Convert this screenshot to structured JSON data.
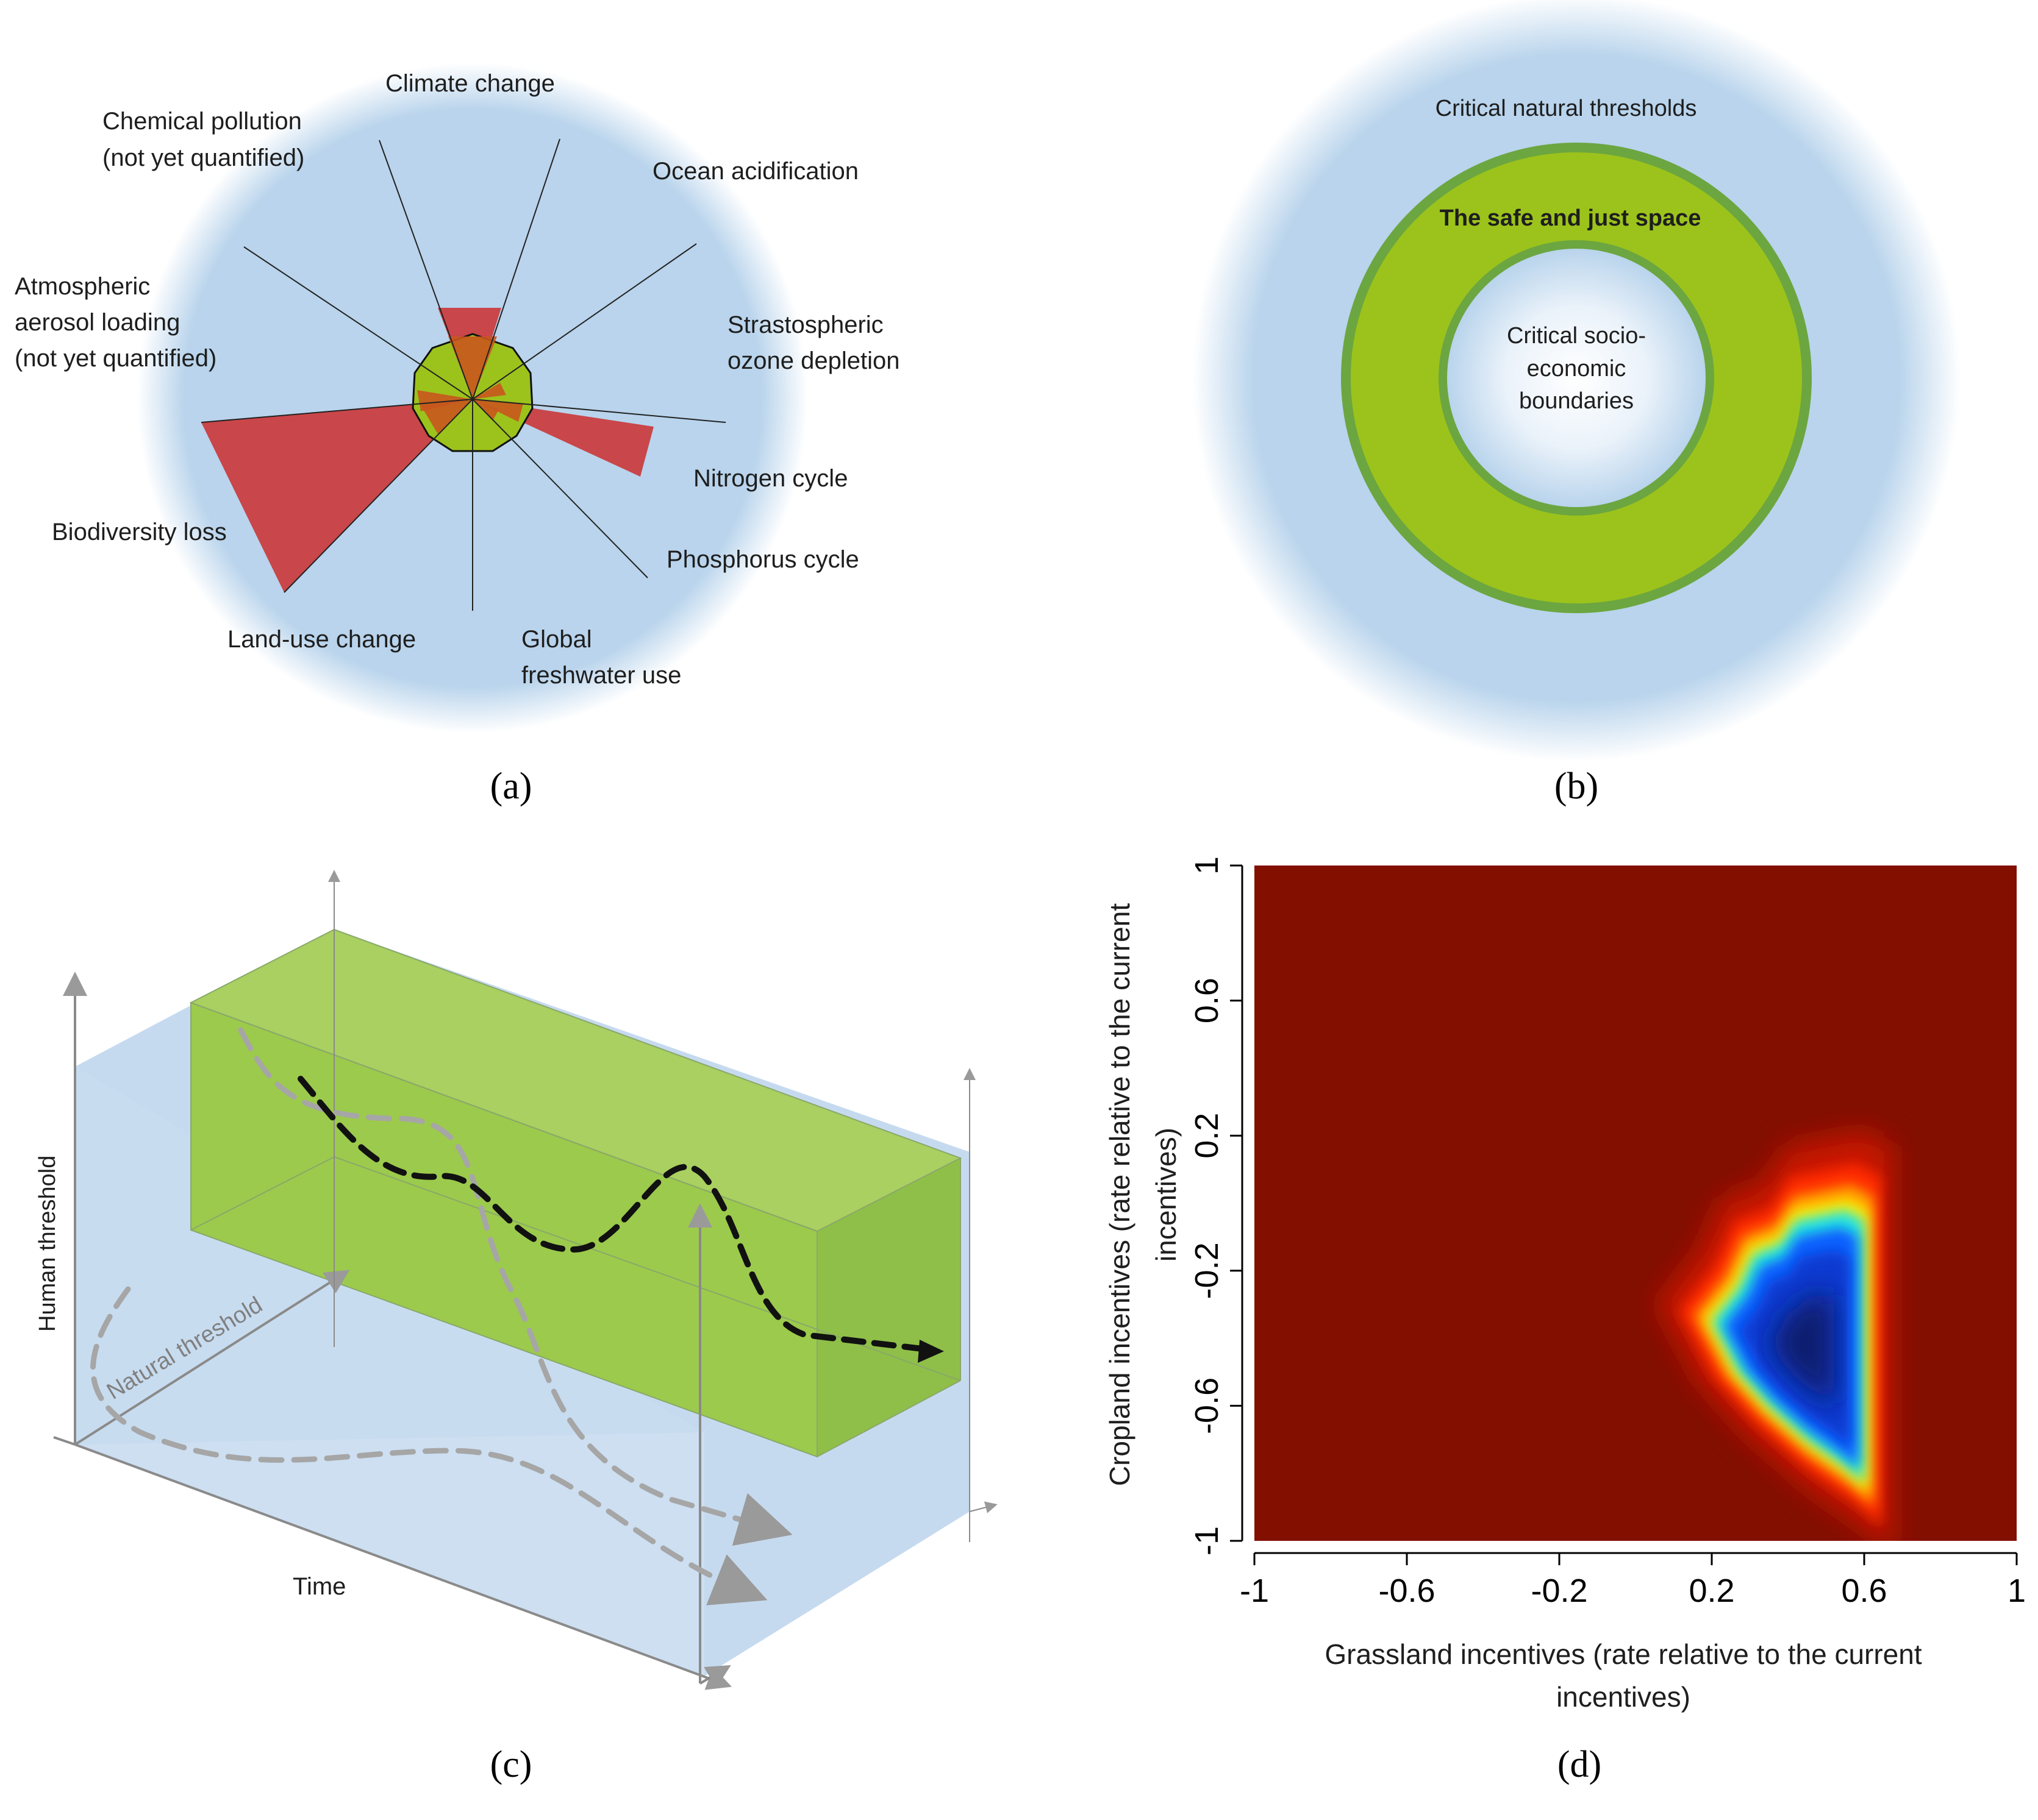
{
  "colors": {
    "sky": "#b9d4ec",
    "sky_edge": "#ffffff",
    "boundary_red": "#c9464a",
    "safe_green": "#9cc31c",
    "safe_ring_edge": "#6ca640",
    "box_green": "#9cca4c",
    "heat_background": "#820f00",
    "heat_core": "#0c1e6e"
  },
  "panel_a": {
    "caption": "(a)",
    "labels": {
      "climate_change": "Climate change",
      "chemical_pollution_1": "Chemical pollution",
      "chemical_pollution_2": "(not yet quantified)",
      "ocean_acidification": "Ocean acidification",
      "aerosol_1": "Atmospheric",
      "aerosol_2": "aerosol loading",
      "aerosol_3": "(not yet quantified)",
      "ozone_1": "Strastospheric",
      "ozone_2": "ozone depletion",
      "nitrogen": "Nitrogen cycle",
      "phosphorus": "Phosphorus cycle",
      "biodiversity": "Biodiversity loss",
      "land_use": "Land-use change",
      "freshwater_1": "Global",
      "freshwater_2": "freshwater use"
    }
  },
  "panel_b": {
    "caption": "(b)",
    "outer_label": "Critical natural thresholds",
    "ring_label": "The safe and just space",
    "inner_label_1": "Critical socio-",
    "inner_label_2": "economic",
    "inner_label_3": "boundaries"
  },
  "panel_c": {
    "caption": "(c)",
    "y_axis_label": "Human threshold",
    "depth_axis_label": "Natural threshold",
    "x_axis_label": "Time"
  },
  "panel_d": {
    "caption": "(d)",
    "chart_data": {
      "type": "heatmap",
      "title": "",
      "xlabel_line1": "Grassland incentives (rate relative to the current",
      "xlabel_line2": "incentives)",
      "ylabel_line1": "Cropland incentives (rate relative to the current",
      "ylabel_line2": "incentives)",
      "xlim": [
        -1,
        1
      ],
      "ylim": [
        -1,
        1
      ],
      "x_ticks": [
        "-1",
        "-0.6",
        "-0.2",
        "0.2",
        "0.6",
        "1"
      ],
      "y_ticks": [
        "-1",
        "-0.6",
        "-0.2",
        "0.2",
        "0.6",
        "1"
      ],
      "colormap": "jet (dark blue = low, dark red = high)",
      "low_value_region": [
        [
          0.2,
          -0.35
        ],
        [
          0.27,
          -0.25
        ],
        [
          0.31,
          -0.15
        ],
        [
          0.38,
          -0.12
        ],
        [
          0.42,
          -0.05
        ],
        [
          0.55,
          -0.02
        ],
        [
          0.6,
          -0.05
        ],
        [
          0.6,
          -0.83
        ],
        [
          0.55,
          -0.78
        ],
        [
          0.45,
          -0.7
        ],
        [
          0.35,
          -0.6
        ],
        [
          0.27,
          -0.5
        ]
      ]
    }
  }
}
